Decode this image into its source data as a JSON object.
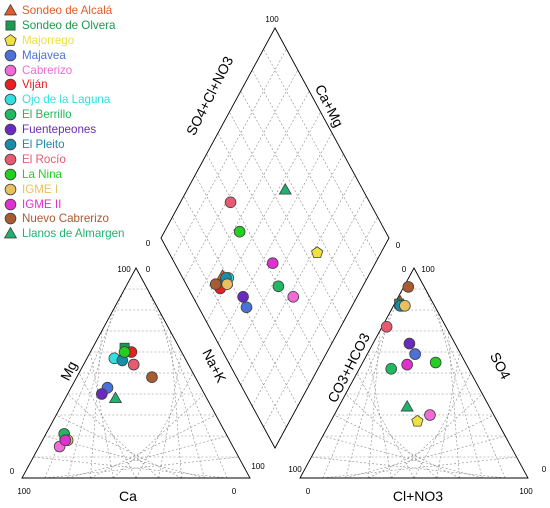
{
  "chart_data": {
    "type": "scatter",
    "subtype": "piper-diagram",
    "title": "",
    "cation_axes": {
      "left": "Mg",
      "right": "Na+K",
      "bottom": "Ca"
    },
    "anion_axes": {
      "left": "CO3+HCO3",
      "right": "SO4",
      "bottom": "Cl+NO3"
    },
    "diamond_axes": {
      "upper_left": "SO4+Cl+NO3",
      "upper_right": "Ca+Mg"
    },
    "tick_min": "0",
    "tick_max": "100",
    "grid": true,
    "legend_position": "top-left",
    "series": [
      {
        "name": "Sondeo de Alcalá",
        "color": "#e25b2a",
        "marker": "triangle",
        "cation": [
          60,
          15
        ],
        "anion": [
          84,
          2
        ],
        "diamond": [
          18,
          64
        ]
      },
      {
        "name": "Sondeo de Olvera",
        "color": "#1a9a50",
        "marker": "square",
        "cation": [
          62,
          14
        ],
        "anion": [
          83,
          2
        ],
        "diamond": [
          15,
          63
        ]
      },
      {
        "name": "Majorrego",
        "color": "#f0e040",
        "marker": "pentagon",
        "cation": [
          18,
          10
        ],
        "anion": [
          27,
          38
        ],
        "diamond": [
          65,
          28
        ]
      },
      {
        "name": "Majavea",
        "color": "#4a72d8",
        "marker": "circle",
        "cation": [
          43,
          16
        ],
        "anion": [
          59,
          21
        ],
        "diamond": [
          21,
          46
        ]
      },
      {
        "name": "Cabrerizo",
        "color": "#f06bd8",
        "marker": "circle",
        "cation": [
          15,
          9
        ],
        "anion": [
          30,
          42
        ],
        "diamond": [
          44,
          28
        ]
      },
      {
        "name": "Viján",
        "color": "#e52020",
        "marker": "circle",
        "cation": [
          60,
          18
        ],
        "anion": [
          82,
          3
        ],
        "diamond": [
          14,
          62
        ]
      },
      {
        "name": "Ojo de la Laguna",
        "color": "#30e0e0",
        "marker": "circle",
        "cation": [
          57,
          12
        ],
        "anion": [
          82,
          4
        ],
        "diamond": [
          20,
          61
        ]
      },
      {
        "name": "El Berrillo",
        "color": "#20b860",
        "marker": "circle",
        "cation": [
          21,
          8
        ],
        "anion": [
          52,
          14
        ],
        "diamond": [
          40,
          37
        ]
      },
      {
        "name": "Fuentepeones",
        "color": "#6a2ac0",
        "marker": "circle",
        "cation": [
          40,
          15
        ],
        "anion": [
          64,
          16
        ],
        "diamond": [
          22,
          50
        ]
      },
      {
        "name": "El Pleito",
        "color": "#1a8ca8",
        "marker": "circle",
        "cation": [
          56,
          16
        ],
        "anion": [
          82,
          3
        ],
        "diamond": [
          19,
          62
        ]
      },
      {
        "name": "El Rocío",
        "color": "#e85a70",
        "marker": "circle",
        "cation": [
          54,
          22
        ],
        "anion": [
          72,
          2
        ],
        "diamond": [
          39,
          78
        ]
      },
      {
        "name": "La Nina",
        "color": "#22d020",
        "marker": "circle",
        "cation": [
          60,
          15
        ],
        "anion": [
          55,
          32
        ],
        "diamond": [
          36,
          67
        ]
      },
      {
        "name": "IGME I",
        "color": "#e8c060",
        "marker": "circle",
        "cation": [
          18,
          11
        ],
        "anion": [
          82,
          5
        ],
        "diamond": [
          18,
          60
        ]
      },
      {
        "name": "IGME II",
        "color": "#e030d0",
        "marker": "circle",
        "cation": [
          18,
          10
        ],
        "anion": [
          54,
          20
        ],
        "diamond": [
          43,
          45
        ]
      },
      {
        "name": "Nuevo Cabrerizo",
        "color": "#a85a30",
        "marker": "circle",
        "cation": [
          48,
          33
        ],
        "anion": [
          91,
          2
        ],
        "diamond": [
          13,
          65
        ]
      },
      {
        "name": "Llanos de Almargen",
        "color": "#20b070",
        "marker": "triangle",
        "cation": [
          38,
          22
        ],
        "anion": [
          34,
          30
        ],
        "diamond": [
          66,
          57
        ]
      }
    ]
  }
}
